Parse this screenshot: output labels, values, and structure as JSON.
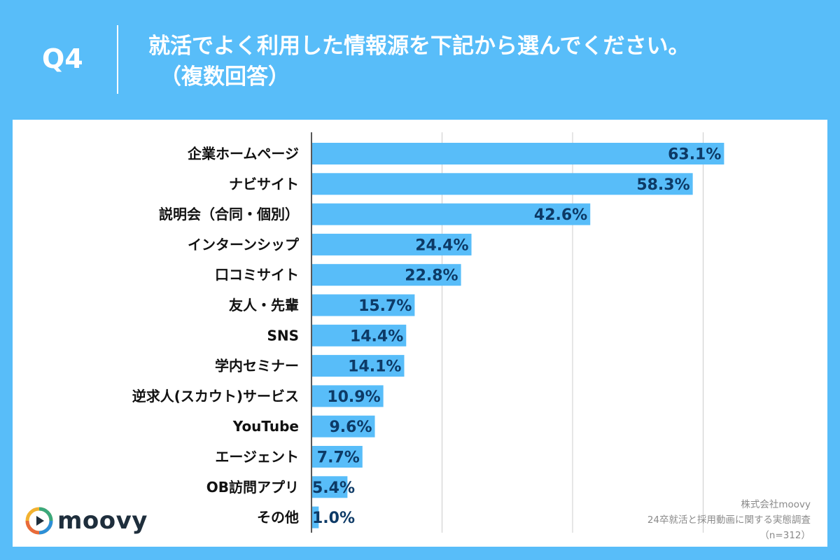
{
  "header": {
    "question": "Q4",
    "title_line1": "就活でよく利用した情報源を下記から選んでください。",
    "title_line2": "（複数回答）"
  },
  "logo": {
    "text": "moovy",
    "icon": "play-circle-icon"
  },
  "source": {
    "company": "株式会社moovy",
    "survey": "24卒就活と採用動画に関する実態調査",
    "sample": "（n=312）"
  },
  "colors": {
    "background": "#58bdf9",
    "bar": "#58bdf9",
    "value_text": "#0d3a66",
    "grid": "#cccccc"
  },
  "chart_data": {
    "type": "bar",
    "orientation": "horizontal",
    "categories": [
      "企業ホームページ",
      "ナビサイト",
      "説明会（合同・個別）",
      "インターンシップ",
      "口コミサイト",
      "友人・先輩",
      "SNS",
      "学内セミナー",
      "逆求人(スカウト)サービス",
      "YouTube",
      "エージェント",
      "OB訪問アプリ",
      "その他"
    ],
    "values": [
      63.1,
      58.3,
      42.6,
      24.4,
      22.8,
      15.7,
      14.4,
      14.1,
      10.9,
      9.6,
      7.7,
      5.4,
      1.0
    ],
    "value_labels": [
      "63.1%",
      "58.3%",
      "42.6%",
      "24.4%",
      "22.8%",
      "15.7%",
      "14.4%",
      "14.1%",
      "10.9%",
      "9.6%",
      "7.7%",
      "5.4%",
      "1.0%"
    ],
    "unit": "%",
    "xlim": [
      0,
      80
    ],
    "grid": true
  }
}
